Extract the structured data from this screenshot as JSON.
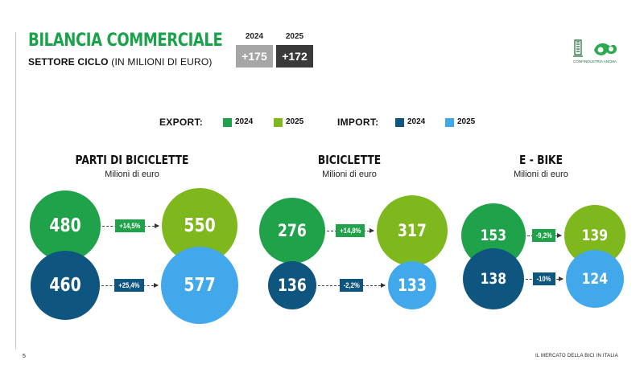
{
  "header": {
    "title": "BILANCIA COMMERCIALE",
    "subtitle_bold": "SETTORE CICLO",
    "subtitle_normal": "(IN MILIONI DI EURO)"
  },
  "balance": {
    "y2024": "2024",
    "v2024": "+175",
    "y2025": "2025",
    "v2025": "+172"
  },
  "logo": {
    "text": "CONFINDUSTRIA ANCMA"
  },
  "legend": {
    "export_title": "EXPORT:",
    "import_title": "IMPORT:",
    "export_2024": "2024",
    "export_2025": "2025",
    "import_2024": "2024",
    "import_2025": "2025"
  },
  "colors": {
    "export_2024": "#1fa24a",
    "export_2025": "#7fb81d",
    "import_2024": "#0e5580",
    "import_2025": "#42a8ec",
    "title": "#19a24a",
    "balance_2024": "#a6a6a6",
    "balance_2025": "#3a3a3a"
  },
  "chart_data": [
    {
      "type": "bubble",
      "title": "PARTI DI BICICLETTE",
      "subtitle": "Milioni di euro",
      "series": [
        {
          "name": "EXPORT",
          "values": [
            {
              "x": "2024",
              "y": 480
            },
            {
              "x": "2025",
              "y": 550
            }
          ],
          "change": "+14,5%"
        },
        {
          "name": "IMPORT",
          "values": [
            {
              "x": "2024",
              "y": 460
            },
            {
              "x": "2025",
              "y": 577
            }
          ],
          "change": "+25,4%"
        }
      ]
    },
    {
      "type": "bubble",
      "title": "BICICLETTE",
      "subtitle": "Milioni di euro",
      "series": [
        {
          "name": "EXPORT",
          "values": [
            {
              "x": "2024",
              "y": 276
            },
            {
              "x": "2025",
              "y": 317
            }
          ],
          "change": "+14,8%"
        },
        {
          "name": "IMPORT",
          "values": [
            {
              "x": "2024",
              "y": 136
            },
            {
              "x": "2025",
              "y": 133
            }
          ],
          "change": "-2,2%"
        }
      ]
    },
    {
      "type": "bubble",
      "title": "E - BIKE",
      "subtitle": "Milioni di euro",
      "series": [
        {
          "name": "EXPORT",
          "values": [
            {
              "x": "2024",
              "y": 153
            },
            {
              "x": "2025",
              "y": 139
            }
          ],
          "change": "-9,2%"
        },
        {
          "name": "IMPORT",
          "values": [
            {
              "x": "2024",
              "y": 138
            },
            {
              "x": "2025",
              "y": 124
            }
          ],
          "change": "-10%"
        }
      ]
    }
  ],
  "footer": {
    "page": "5",
    "right": "IL MERCATO DELLA BICI IN ITALIA"
  }
}
